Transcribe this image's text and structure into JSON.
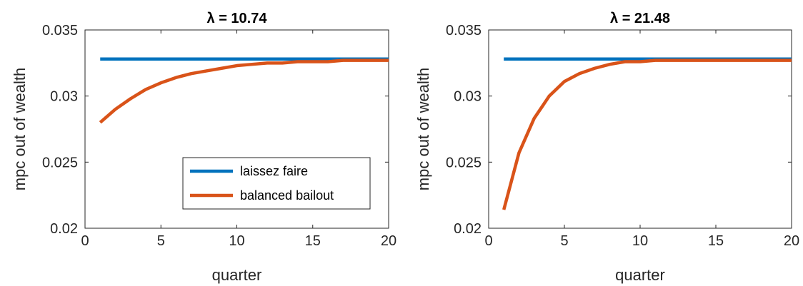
{
  "chart_data": [
    {
      "type": "line",
      "title": "λ = 10.74",
      "xlabel": "quarter",
      "ylabel": "mpc out of wealth",
      "xlim": [
        0,
        20
      ],
      "ylim": [
        0.02,
        0.035
      ],
      "xticks": [
        "0",
        "5",
        "10",
        "15",
        "20"
      ],
      "yticks": [
        "0.02",
        "0.025",
        "0.03",
        "0.035"
      ],
      "grid": false,
      "legend_position": "bottom-right",
      "x": [
        1,
        2,
        3,
        4,
        5,
        6,
        7,
        8,
        9,
        10,
        11,
        12,
        13,
        14,
        15,
        16,
        17,
        18,
        19,
        20
      ],
      "series": [
        {
          "name": "laissez faire",
          "color": "#0072BD",
          "values": [
            0.0328,
            0.0328,
            0.0328,
            0.0328,
            0.0328,
            0.0328,
            0.0328,
            0.0328,
            0.0328,
            0.0328,
            0.0328,
            0.0328,
            0.0328,
            0.0328,
            0.0328,
            0.0328,
            0.0328,
            0.0328,
            0.0328,
            0.0328
          ]
        },
        {
          "name": "balanced bailout",
          "color": "#D95319",
          "values": [
            0.028,
            0.029,
            0.0298,
            0.0305,
            0.031,
            0.0314,
            0.0317,
            0.0319,
            0.0321,
            0.0323,
            0.0324,
            0.0325,
            0.0325,
            0.0326,
            0.0326,
            0.0326,
            0.0327,
            0.0327,
            0.0327,
            0.0327
          ]
        }
      ]
    },
    {
      "type": "line",
      "title": "λ = 21.48",
      "xlabel": "quarter",
      "ylabel": "mpc out of wealth",
      "xlim": [
        0,
        20
      ],
      "ylim": [
        0.02,
        0.035
      ],
      "xticks": [
        "0",
        "5",
        "10",
        "15",
        "20"
      ],
      "yticks": [
        "0.02",
        "0.025",
        "0.03",
        "0.035"
      ],
      "grid": false,
      "x": [
        1,
        2,
        3,
        4,
        5,
        6,
        7,
        8,
        9,
        10,
        11,
        12,
        13,
        14,
        15,
        16,
        17,
        18,
        19,
        20
      ],
      "series": [
        {
          "color": "#0072BD",
          "values": [
            0.0328,
            0.0328,
            0.0328,
            0.0328,
            0.0328,
            0.0328,
            0.0328,
            0.0328,
            0.0328,
            0.0328,
            0.0328,
            0.0328,
            0.0328,
            0.0328,
            0.0328,
            0.0328,
            0.0328,
            0.0328,
            0.0328,
            0.0328
          ]
        },
        {
          "color": "#D95319",
          "values": [
            0.0214,
            0.0257,
            0.0283,
            0.03,
            0.0311,
            0.0317,
            0.0321,
            0.0324,
            0.0326,
            0.0326,
            0.0327,
            0.0327,
            0.0327,
            0.0327,
            0.0327,
            0.0327,
            0.0327,
            0.0327,
            0.0327,
            0.0327
          ]
        }
      ]
    }
  ]
}
